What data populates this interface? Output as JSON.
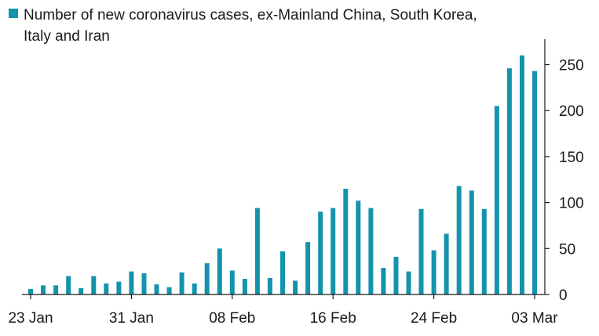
{
  "chart_data": {
    "type": "bar",
    "title": "",
    "xlabel": "",
    "ylabel": "",
    "series": [
      {
        "name": "Number of new coronavirus cases, ex-Mainland China, South Korea, Italy and Iran",
        "color": "#1493ad",
        "values": [
          6,
          10,
          10,
          20,
          7,
          20,
          12,
          14,
          25,
          23,
          11,
          8,
          24,
          12,
          34,
          50,
          26,
          17,
          94,
          18,
          47,
          15,
          57,
          90,
          94,
          115,
          102,
          94,
          29,
          41,
          25,
          93,
          48,
          66,
          118,
          113,
          93,
          205,
          246,
          260,
          243
        ]
      }
    ],
    "start_date": "23 Jan",
    "x_tick_labels": [
      "23 Jan",
      "31 Jan",
      "08 Feb",
      "16 Feb",
      "24 Feb",
      "03 Mar"
    ],
    "y_ticks": [
      0,
      50,
      100,
      150,
      200,
      250
    ],
    "ylim": [
      0,
      270
    ],
    "y_axis_side": "right",
    "grid": false,
    "legend": "top-left"
  }
}
